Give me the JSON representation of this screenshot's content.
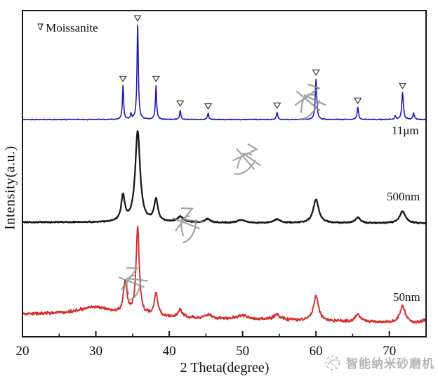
{
  "chart_data": {
    "type": "line",
    "chart_kind": "xrd-pattern",
    "title": "",
    "xlabel": "2 Theta(degree)",
    "ylabel": "Intensity(a.u.)",
    "xlim": [
      20,
      75
    ],
    "x_major_ticks": [
      20,
      30,
      40,
      50,
      60,
      70
    ],
    "x_minor_ticks": [
      25,
      35,
      45,
      55,
      65,
      75
    ],
    "grid": "off",
    "y_axis_ticks": "none (arbitrary units)",
    "legend": {
      "symbol": "∇",
      "label": "Moissanite",
      "position": "top-left"
    },
    "peak_marker_symbol": "∇",
    "series": [
      {
        "name": "11μm",
        "color": "#1e1eb4",
        "profile": "sharp crystalline peaks, flat baseline",
        "peaks": [
          {
            "two_theta": 33.7,
            "intensity": 48,
            "width_deg": 0.1
          },
          {
            "two_theta": 34.8,
            "intensity": 7,
            "width_deg": 0.09
          },
          {
            "two_theta": 35.7,
            "intensity": 134,
            "width_deg": 0.11
          },
          {
            "two_theta": 38.2,
            "intensity": 48,
            "width_deg": 0.1
          },
          {
            "two_theta": 41.5,
            "intensity": 13,
            "width_deg": 0.1
          },
          {
            "two_theta": 45.3,
            "intensity": 9,
            "width_deg": 0.1
          },
          {
            "two_theta": 54.7,
            "intensity": 10,
            "width_deg": 0.11
          },
          {
            "two_theta": 60.0,
            "intensity": 57,
            "width_deg": 0.12
          },
          {
            "two_theta": 65.7,
            "intensity": 17,
            "width_deg": 0.12
          },
          {
            "two_theta": 70.8,
            "intensity": 5,
            "width_deg": 0.1
          },
          {
            "two_theta": 71.8,
            "intensity": 38,
            "width_deg": 0.13
          },
          {
            "two_theta": 73.3,
            "intensity": 9,
            "width_deg": 0.12
          }
        ],
        "marked_peaks": [
          33.7,
          35.7,
          38.2,
          41.5,
          45.3,
          54.7,
          60.0,
          65.7,
          71.8
        ]
      },
      {
        "name": "500nm",
        "color": "#1a1a1a",
        "profile": "broadened peaks",
        "peaks": [
          {
            "two_theta": 33.7,
            "intensity": 36,
            "width_deg": 0.3
          },
          {
            "two_theta": 35.7,
            "intensity": 129,
            "width_deg": 0.4
          },
          {
            "two_theta": 38.2,
            "intensity": 31,
            "width_deg": 0.32
          },
          {
            "two_theta": 41.5,
            "intensity": 8,
            "width_deg": 0.5
          },
          {
            "two_theta": 45.2,
            "intensity": 5,
            "width_deg": 0.45
          },
          {
            "two_theta": 49.8,
            "intensity": 4,
            "width_deg": 0.6
          },
          {
            "two_theta": 54.7,
            "intensity": 5,
            "width_deg": 0.5
          },
          {
            "two_theta": 60.0,
            "intensity": 34,
            "width_deg": 0.45
          },
          {
            "two_theta": 65.7,
            "intensity": 8,
            "width_deg": 0.45
          },
          {
            "two_theta": 71.8,
            "intensity": 17,
            "width_deg": 0.5
          }
        ],
        "marked_peaks": []
      },
      {
        "name": "50nm",
        "color": "#d92c2c",
        "profile": "very broad noisy peaks with amorphous hump near 30°",
        "peaks": [
          {
            "two_theta": 29.8,
            "intensity": 12,
            "width_deg": 3.0
          },
          {
            "two_theta": 34.0,
            "intensity": 45,
            "width_deg": 0.3
          },
          {
            "two_theta": 35.7,
            "intensity": 124,
            "width_deg": 0.26
          },
          {
            "two_theta": 38.2,
            "intensity": 32,
            "width_deg": 0.3
          },
          {
            "two_theta": 41.5,
            "intensity": 10,
            "width_deg": 0.35
          },
          {
            "two_theta": 45.3,
            "intensity": 5,
            "width_deg": 0.4
          },
          {
            "two_theta": 50.0,
            "intensity": 5,
            "width_deg": 0.8
          },
          {
            "two_theta": 54.7,
            "intensity": 7,
            "width_deg": 0.6
          },
          {
            "two_theta": 60.0,
            "intensity": 36,
            "width_deg": 0.4
          },
          {
            "two_theta": 65.7,
            "intensity": 11,
            "width_deg": 0.4
          },
          {
            "two_theta": 71.8,
            "intensity": 23,
            "width_deg": 0.45
          },
          {
            "two_theta": 74.8,
            "intensity": 4,
            "width_deg": 0.5
          }
        ],
        "marked_peaks": []
      }
    ]
  },
  "watermark": {
    "text": "智能纳米砂磨机",
    "logo": "circle-logo",
    "color": "#b6b6b6",
    "overlay_scribbles": "four gray handwritten characters crossing the plot diagonally"
  },
  "colors": {
    "frame": "#1a1a1a",
    "background": "#ffffff",
    "marker_stroke": "#3a3a3a",
    "scribble": "#8e8e8e"
  }
}
